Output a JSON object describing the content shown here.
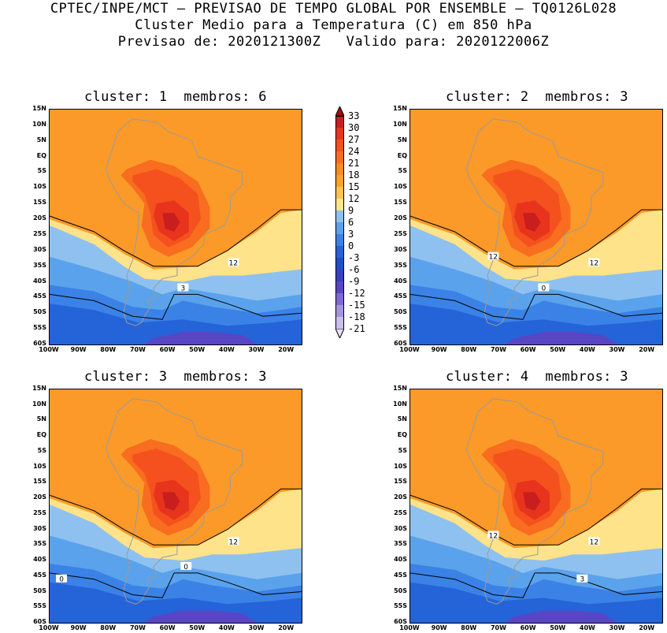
{
  "header": {
    "line1": "CPTEC/INPE/MCT – PREVISAO DE TEMPO GLOBAL POR ENSEMBLE – TQ0126L028",
    "line2": "Cluster Medio para a Temperatura (C) em 850 hPa",
    "line3": "Previsao de: 2020121300Z   Valido para: 2020122006Z"
  },
  "panels": [
    {
      "title": "cluster: 1  membros: 6",
      "label_12": "12",
      "label_low": "3"
    },
    {
      "title": "cluster: 2  membros: 3",
      "label_12": "12",
      "label_12b": "12",
      "label_low": "0"
    },
    {
      "title": "cluster: 3  membros: 3",
      "label_12": "12",
      "label_low": "0",
      "label_low2": "0"
    },
    {
      "title": "cluster: 4  membros: 3",
      "label_12": "12",
      "label_12b": "12",
      "label_low": "3"
    }
  ],
  "lat_labels": [
    "15N",
    "10N",
    "5N",
    "EQ",
    "5S",
    "10S",
    "15S",
    "20S",
    "25S",
    "30S",
    "35S",
    "40S",
    "45S",
    "50S",
    "55S",
    "60S"
  ],
  "lon_labels": [
    "100W",
    "90W",
    "80W",
    "70W",
    "60W",
    "50W",
    "40W",
    "30W",
    "20W"
  ],
  "colorbar": {
    "labels": [
      "33",
      "30",
      "27",
      "24",
      "21",
      "18",
      "15",
      "12",
      "9",
      "6",
      "3",
      "0",
      "-3",
      "-6",
      "-9",
      "-12",
      "-15",
      "-18",
      "-21"
    ],
    "colors": [
      "#a50f15",
      "#c81e1e",
      "#e8341c",
      "#f4511e",
      "#f86d1f",
      "#fb8a21",
      "#fca32a",
      "#fec44f",
      "#fde68a",
      "#8ec1f0",
      "#5ba2ec",
      "#3b82e6",
      "#2563d9",
      "#1e4fc8",
      "#3b3fc0",
      "#5846c4",
      "#7f69d3",
      "#a595e0",
      "#cbbfee",
      "#e7e0f7"
    ]
  },
  "map_colors": {
    "ocean_warm": "#fb9a29",
    "yellow_band": "#fee38a",
    "light_blue": "#8ec1f0",
    "mid_blue": "#5ba2ec",
    "blue": "#3b82e6",
    "deep_blue": "#2563d9",
    "purple": "#5846c4",
    "land_hot": "#f4511e",
    "land_hotter": "#e8341c",
    "land_hottest": "#c81e1e",
    "land_warm": "#f86d1f",
    "coast": "#9a9a9a"
  }
}
